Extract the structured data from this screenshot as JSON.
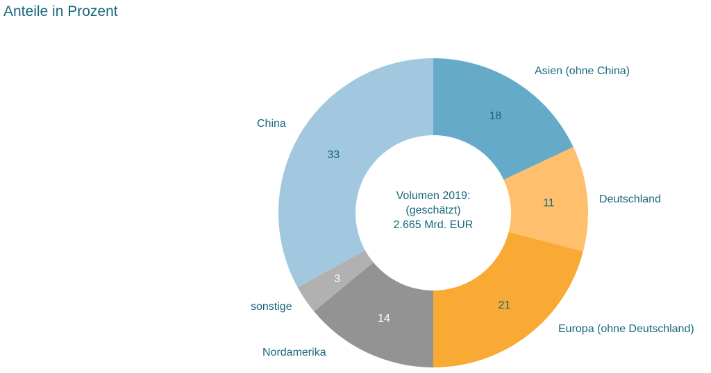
{
  "chart_data": {
    "type": "pie",
    "variant": "donut",
    "title": "Anteile in Prozent",
    "center_text": [
      "Volumen 2019:",
      "(geschätzt)",
      "2.665 Mrd. EUR"
    ],
    "unit": "%",
    "slices": [
      {
        "label": "Asien (ohne China)",
        "value": 18,
        "color": "#66aac9",
        "value_color": "#17677d"
      },
      {
        "label": "Deutschland",
        "value": 11,
        "color": "#ffbf6d",
        "value_color": "#17677d"
      },
      {
        "label": "Europa (ohne Deutschland)",
        "value": 21,
        "color": "#f8aa34",
        "value_color": "#17677d"
      },
      {
        "label": "Nordamerika",
        "value": 14,
        "color": "#939393",
        "value_color": "#ffffff"
      },
      {
        "label": "sonstige",
        "value": 3,
        "color": "#b1b1b1",
        "value_color": "#ffffff"
      },
      {
        "label": "China",
        "value": 33,
        "color": "#a2c8df",
        "value_color": "#17677d"
      }
    ],
    "start_angle": "top",
    "direction": "clockwise",
    "legend": "none"
  }
}
